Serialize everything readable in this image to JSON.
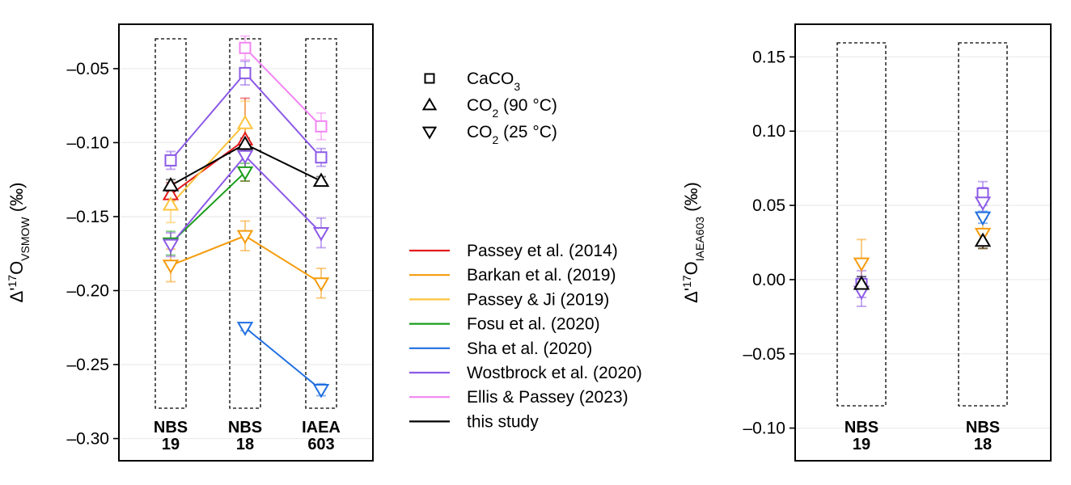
{
  "chart_data": [
    {
      "type": "line",
      "categories": [
        "NBS 19",
        "NBS 18",
        "IAEA 603"
      ],
      "category_labels": [
        [
          "NBS",
          "19"
        ],
        [
          "NBS",
          "18"
        ],
        [
          "IAEA",
          "603"
        ]
      ],
      "ylabel": {
        "prefix": "Δ'",
        "sup": "17",
        "main": "O",
        "sub": "VSMOW",
        "suffix": " (‰)"
      },
      "ylim": [
        -0.315,
        -0.02
      ],
      "yticks": [
        -0.05,
        -0.1,
        -0.15,
        -0.2,
        -0.25,
        -0.3
      ],
      "ytick_labels": [
        "–0.05",
        "–0.10",
        "–0.15",
        "–0.20",
        "–0.25",
        "–0.30"
      ],
      "grid": "horizontal",
      "series": [
        {
          "name": "Passey et al. (2014)",
          "color": "#e31a1c",
          "points": [
            {
              "x": "NBS 19",
              "y": -0.135,
              "err": 0.008,
              "marker": "triangle-up"
            },
            {
              "x": "NBS 18",
              "y": -0.098,
              "err": 0.028,
              "marker": "triangle-up"
            }
          ]
        },
        {
          "name": "Barkan et al. (2019)",
          "color": "#f59b0c",
          "points": [
            {
              "x": "NBS 19",
              "y": -0.183,
              "err": 0.011,
              "marker": "triangle-down"
            },
            {
              "x": "NBS 18",
              "y": -0.163,
              "err": 0.01,
              "marker": "triangle-down"
            },
            {
              "x": "IAEA 603",
              "y": -0.195,
              "err": 0.01,
              "marker": "triangle-down"
            }
          ]
        },
        {
          "name": "Passey & Ji (2019)",
          "color": "#fcc33d",
          "points": [
            {
              "x": "NBS 19",
              "y": -0.142,
              "err": 0.012,
              "marker": "triangle-up"
            },
            {
              "x": "NBS 18",
              "y": -0.087,
              "err": 0.015,
              "marker": "triangle-up"
            }
          ]
        },
        {
          "name": "Fosu et al. (2020)",
          "color": "#1a9e1a",
          "points": [
            {
              "x": "NBS 19",
              "y": -0.168,
              "err": 0.008,
              "marker": "triangle-down"
            },
            {
              "x": "NBS 18",
              "y": -0.12,
              "err": 0.006,
              "marker": "triangle-down"
            }
          ]
        },
        {
          "name": "Sha et al. (2020)",
          "color": "#1f6fe0",
          "points": [
            {
              "x": "NBS 18",
              "y": -0.225,
              "err": 0.002,
              "marker": "triangle-down"
            },
            {
              "x": "IAEA 603",
              "y": -0.267,
              "err": 0.004,
              "marker": "triangle-down"
            }
          ]
        },
        {
          "name": "Wostbrock et al. (2020)",
          "color": "#8c5ae6",
          "points": [
            {
              "x": "NBS 19",
              "y": -0.112,
              "err": 0.006,
              "marker": "square"
            },
            {
              "x": "NBS 18",
              "y": -0.053,
              "err": 0.008,
              "marker": "square"
            },
            {
              "x": "IAEA 603",
              "y": -0.11,
              "err": 0.006,
              "marker": "square"
            }
          ]
        },
        {
          "name": "Wostbrock et al. (2020)",
          "color": "#8c5ae6",
          "legend": false,
          "points": [
            {
              "x": "NBS 19",
              "y": -0.169,
              "err": 0.008,
              "marker": "triangle-down"
            },
            {
              "x": "NBS 18",
              "y": -0.109,
              "err": 0.008,
              "marker": "triangle-down"
            },
            {
              "x": "IAEA 603",
              "y": -0.161,
              "err": 0.01,
              "marker": "triangle-down"
            }
          ]
        },
        {
          "name": "Ellis & Passey (2023)",
          "color": "#f285f2",
          "points": [
            {
              "x": "NBS 18",
              "y": -0.036,
              "err": 0.008,
              "marker": "square"
            },
            {
              "x": "IAEA 603",
              "y": -0.089,
              "err": 0.009,
              "marker": "square"
            }
          ]
        },
        {
          "name": "this study",
          "color": "#000000",
          "points": [
            {
              "x": "NBS 19",
              "y": -0.129,
              "err": 0.004,
              "marker": "triangle-up"
            },
            {
              "x": "NBS 18",
              "y": -0.101,
              "err": 0.004,
              "marker": "triangle-up"
            },
            {
              "x": "IAEA 603",
              "y": -0.126,
              "err": 0.003,
              "marker": "triangle-up"
            }
          ]
        }
      ]
    },
    {
      "type": "scatter",
      "categories": [
        "NBS 19",
        "NBS 18"
      ],
      "category_labels": [
        [
          "NBS",
          "19"
        ],
        [
          "NBS",
          "18"
        ]
      ],
      "ylabel": {
        "prefix": "Δ'",
        "sup": "17",
        "main": "O",
        "sub": "IAEA603",
        "suffix": " (‰)"
      },
      "ylim": [
        -0.122,
        0.172
      ],
      "yticks": [
        0.15,
        0.1,
        0.05,
        0.0,
        -0.05,
        -0.1
      ],
      "ytick_labels": [
        "0.15",
        "0.10",
        "0.05",
        "0.00",
        "–0.05",
        "–0.10"
      ],
      "grid": "horizontal",
      "series": [
        {
          "name": "Barkan et al. (2019)",
          "color": "#f59b0c",
          "points": [
            {
              "x": "NBS 19",
              "y": 0.011,
              "err": 0.016,
              "marker": "triangle-down"
            },
            {
              "x": "NBS 18",
              "y": 0.031,
              "err": 0.01,
              "marker": "triangle-down"
            }
          ]
        },
        {
          "name": "Sha et al. (2020)",
          "color": "#1f6fe0",
          "points": [
            {
              "x": "NBS 18",
              "y": 0.042,
              "err": 0.004,
              "marker": "triangle-down"
            }
          ]
        },
        {
          "name": "Wostbrock et al. (2020)",
          "color": "#8c5ae6",
          "points": [
            {
              "x": "NBS 19",
              "y": -0.003,
              "err": 0.009,
              "marker": "square"
            },
            {
              "x": "NBS 18",
              "y": 0.058,
              "err": 0.008,
              "marker": "square"
            }
          ]
        },
        {
          "name": "Wostbrock et al. (2020)",
          "color": "#8c5ae6",
          "points": [
            {
              "x": "NBS 19",
              "y": -0.008,
              "err": 0.01,
              "marker": "triangle-down"
            },
            {
              "x": "NBS 18",
              "y": 0.052,
              "err": 0.01,
              "marker": "triangle-down"
            }
          ]
        },
        {
          "name": "this study",
          "color": "#000000",
          "points": [
            {
              "x": "NBS 19",
              "y": -0.003,
              "err": 0.005,
              "marker": "triangle-up"
            },
            {
              "x": "NBS 18",
              "y": 0.026,
              "err": 0.005,
              "marker": "triangle-up"
            }
          ]
        }
      ]
    }
  ],
  "legend": {
    "markers": [
      {
        "marker": "square",
        "label": "CaCO",
        "sub": "3",
        "rest": ""
      },
      {
        "marker": "triangle-up",
        "label": "CO",
        "sub": "2",
        "rest": " (90 °C)"
      },
      {
        "marker": "triangle-down",
        "label": "CO",
        "sub": "2",
        "rest": " (25 °C)"
      }
    ],
    "lines": [
      {
        "label": "Passey et al. (2014)",
        "color": "#e31a1c"
      },
      {
        "label": "Barkan et al. (2019)",
        "color": "#f59b0c"
      },
      {
        "label": "Passey & Ji (2019)",
        "color": "#fcc33d"
      },
      {
        "label": "Fosu et al. (2020)",
        "color": "#1a9e1a"
      },
      {
        "label": "Sha et al. (2020)",
        "color": "#1f6fe0"
      },
      {
        "label": "Wostbrock et al. (2020)",
        "color": "#8c5ae6"
      },
      {
        "label": "Ellis & Passey (2023)",
        "color": "#f285f2"
      },
      {
        "label": "this study",
        "color": "#000000"
      }
    ]
  }
}
